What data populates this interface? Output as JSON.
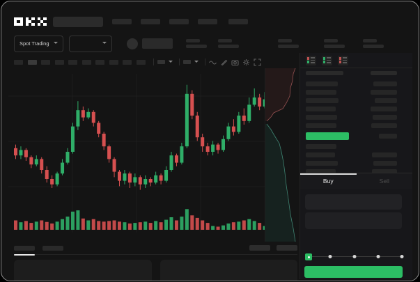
{
  "app": {
    "logo_text": "OKX"
  },
  "colors": {
    "up_green": "#2fae68",
    "down_red": "#d65050",
    "accent_green": "#2cbd64",
    "depth_ask_line": "#935050",
    "depth_bid_line": "#3f8472",
    "grid": "#1d1d1d"
  },
  "subbar": {
    "market_select": {
      "value": "Spot Trading"
    },
    "pair_select": {
      "value": ""
    }
  },
  "icons": {
    "toolbar": [
      "wave-icon",
      "pencil-icon",
      "camera-icon",
      "gear-icon",
      "fullscreen-icon"
    ],
    "orderbook_modes": [
      "book-all-icon",
      "book-bids-icon",
      "book-asks-icon"
    ]
  },
  "order_panel": {
    "buy_tab_label": "Buy",
    "sell_tab_label": "Sell",
    "active_tab": "Buy",
    "amount_slider": {
      "value_percent": 0,
      "stops": 5
    }
  },
  "chart_data": {
    "type": "candlestick",
    "title": "",
    "xlabel": "",
    "ylabel": "",
    "axes_visible": false,
    "grid": true,
    "price_range": [
      35,
      100
    ],
    "series": [
      {
        "name": "price",
        "type": "candlestick",
        "open": [
          62,
          58,
          61,
          57,
          53,
          56,
          50,
          45,
          42,
          48,
          54,
          60,
          74,
          83,
          79,
          82,
          76,
          70,
          63,
          56,
          49,
          44,
          48,
          43,
          46,
          42,
          45,
          43,
          47,
          44,
          50,
          58,
          54,
          63,
          92,
          80,
          68,
          63,
          60,
          64,
          61,
          67,
          74,
          71,
          80,
          77,
          86,
          90,
          85
        ],
        "high": [
          64,
          63,
          62,
          58,
          58,
          57,
          52,
          47,
          49,
          56,
          62,
          76,
          88,
          85,
          84,
          83,
          77,
          71,
          64,
          57,
          50,
          50,
          49,
          48,
          47,
          47,
          46,
          49,
          48,
          52,
          60,
          59,
          65,
          97,
          94,
          82,
          70,
          65,
          66,
          65,
          69,
          76,
          78,
          82,
          84,
          90,
          95,
          92,
          93
        ],
        "low": [
          56,
          56,
          55,
          51,
          52,
          48,
          43,
          40,
          41,
          47,
          53,
          59,
          72,
          77,
          78,
          74,
          68,
          61,
          54,
          46,
          41,
          42,
          40,
          41,
          39,
          40,
          41,
          42,
          42,
          43,
          49,
          52,
          53,
          62,
          78,
          66,
          60,
          58,
          58,
          59,
          60,
          66,
          69,
          70,
          75,
          76,
          85,
          83,
          84
        ],
        "close": [
          58,
          61,
          57,
          53,
          56,
          50,
          45,
          42,
          48,
          54,
          60,
          74,
          83,
          79,
          82,
          76,
          70,
          63,
          56,
          49,
          44,
          48,
          43,
          46,
          42,
          45,
          43,
          47,
          44,
          50,
          58,
          54,
          63,
          92,
          80,
          68,
          63,
          60,
          64,
          61,
          67,
          74,
          71,
          80,
          77,
          86,
          90,
          85,
          89
        ]
      },
      {
        "name": "volume",
        "type": "bar",
        "values": [
          30,
          24,
          28,
          22,
          26,
          30,
          25,
          20,
          26,
          34,
          42,
          58,
          62,
          36,
          30,
          34,
          28,
          26,
          28,
          30,
          26,
          24,
          20,
          22,
          24,
          26,
          22,
          28,
          24,
          32,
          40,
          30,
          42,
          66,
          46,
          38,
          30,
          22,
          12,
          10,
          14,
          20,
          24,
          26,
          30,
          34,
          28,
          22,
          12
        ]
      }
    ]
  },
  "depth_chart": {
    "type": "area",
    "orientation": "vertical",
    "asks_curve": [
      [
        43,
        0
      ],
      [
        40,
        8
      ],
      [
        39,
        18
      ],
      [
        36,
        28
      ],
      [
        35,
        40
      ],
      [
        30,
        50
      ],
      [
        25,
        58
      ],
      [
        12,
        64
      ],
      [
        8,
        70
      ],
      [
        2,
        76
      ]
    ],
    "bids_curve": [
      [
        2,
        80
      ],
      [
        8,
        88
      ],
      [
        12,
        95
      ],
      [
        20,
        108
      ],
      [
        23,
        120
      ],
      [
        26,
        135
      ],
      [
        28,
        150
      ],
      [
        30,
        168
      ],
      [
        33,
        188
      ],
      [
        36,
        210
      ],
      [
        40,
        230
      ],
      [
        43,
        249
      ]
    ]
  }
}
